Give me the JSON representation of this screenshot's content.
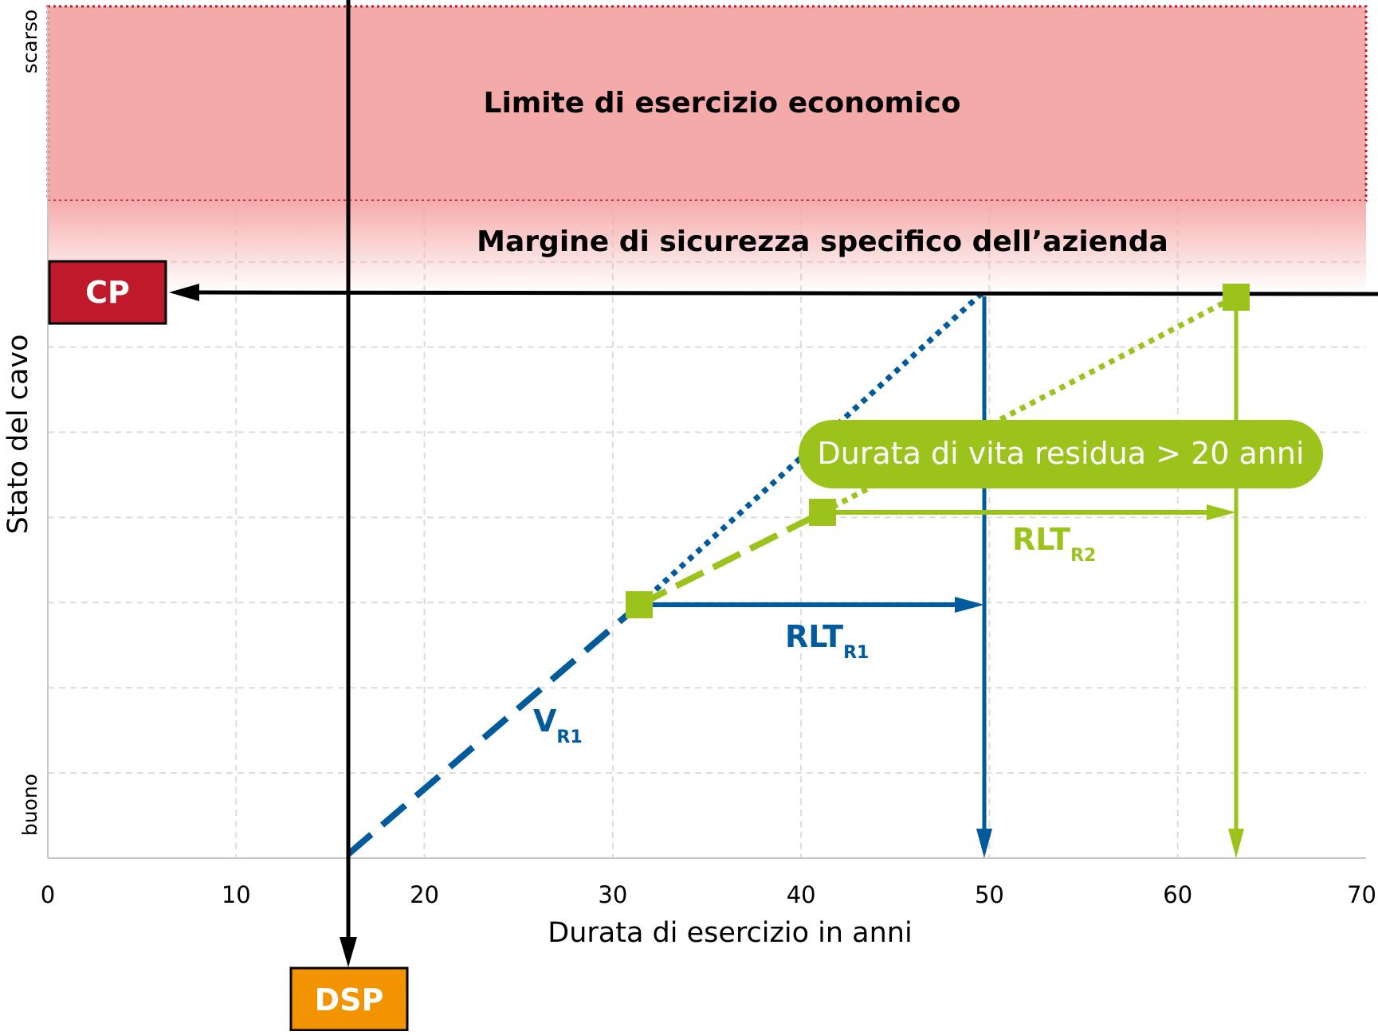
{
  "chart_data": {
    "type": "line",
    "xlabel": "Durata di esercizio in anni",
    "ylabel": "Stato del cavo",
    "x_ticks": [
      0,
      10,
      20,
      30,
      40,
      50,
      60,
      70
    ],
    "xlim": [
      0,
      70
    ],
    "y_tick_labels": {
      "top": "scarso",
      "bottom": "buono"
    },
    "grid": true,
    "bands": {
      "economic_limit": "Limite di esercizio economico",
      "safety_margin": "Margine di sicurezza specifico dell’azienda"
    },
    "labels": {
      "cp": "CP",
      "dsp": "DSP",
      "callout": "Durata di vita residua > 20 anni",
      "v": {
        "main": "V",
        "sub": "R1"
      },
      "rlt1": {
        "main": "RLT",
        "sub": "R1"
      },
      "rlt2": {
        "main": "RLT",
        "sub": "R2"
      }
    },
    "colors": {
      "blue": "#005a9c",
      "green": "#9bc31b",
      "cp_box": "#c0192b",
      "dsp_box": "#f29400",
      "limit_band": "#f5aaaa",
      "limit_border": "#c0192b",
      "axis": "#000000"
    },
    "points": {
      "dsp_x": 16,
      "r1": [
        31.5,
        2.7
      ],
      "r2": [
        41.2,
        3.7
      ],
      "cp_y": 6.0,
      "r1_end_x": 50,
      "r2_end_x": 63
    }
  }
}
